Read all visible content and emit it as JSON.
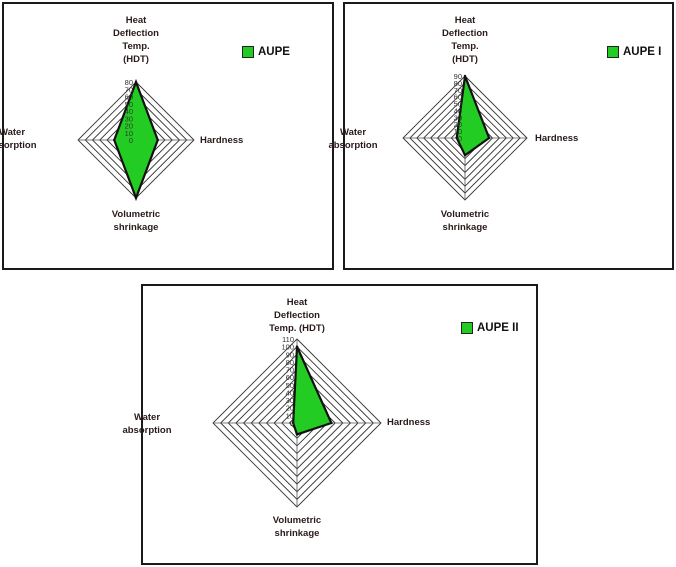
{
  "chart_data": [
    {
      "type": "radar",
      "legend": "AUPE",
      "axes": [
        "Heat\nDeflection\nTemp.\n(HDT)",
        "Hardness",
        "Volumetric\nshrinkage",
        "Water\nabsorption"
      ],
      "values": [
        80,
        30,
        80,
        30
      ],
      "ticks": [
        0,
        10,
        20,
        30,
        40,
        50,
        60,
        70,
        80
      ],
      "rmax": 80,
      "fill": "#22cc22"
    },
    {
      "type": "radar",
      "legend": "AUPE I",
      "axes": [
        "Heat\nDeflection\nTemp.\n(HDT)",
        "Hardness",
        "Volumetric\nshrinkage",
        "Water\nabsorption"
      ],
      "values": [
        90,
        35,
        25,
        12
      ],
      "ticks": [
        0,
        10,
        20,
        30,
        40,
        50,
        60,
        70,
        80,
        90
      ],
      "rmax": 90,
      "fill": "#22cc22"
    },
    {
      "type": "radar",
      "legend": "AUPE II",
      "axes": [
        "Heat\nDeflection\nTemp. (HDT)",
        "Hardness",
        "Volumetric\nshrinkage",
        "Water\nabsorption"
      ],
      "values": [
        100,
        45,
        15,
        5
      ],
      "ticks": [
        0,
        10,
        20,
        30,
        40,
        50,
        60,
        70,
        80,
        90,
        100,
        110
      ],
      "rmax": 110,
      "fill": "#22cc22"
    }
  ]
}
